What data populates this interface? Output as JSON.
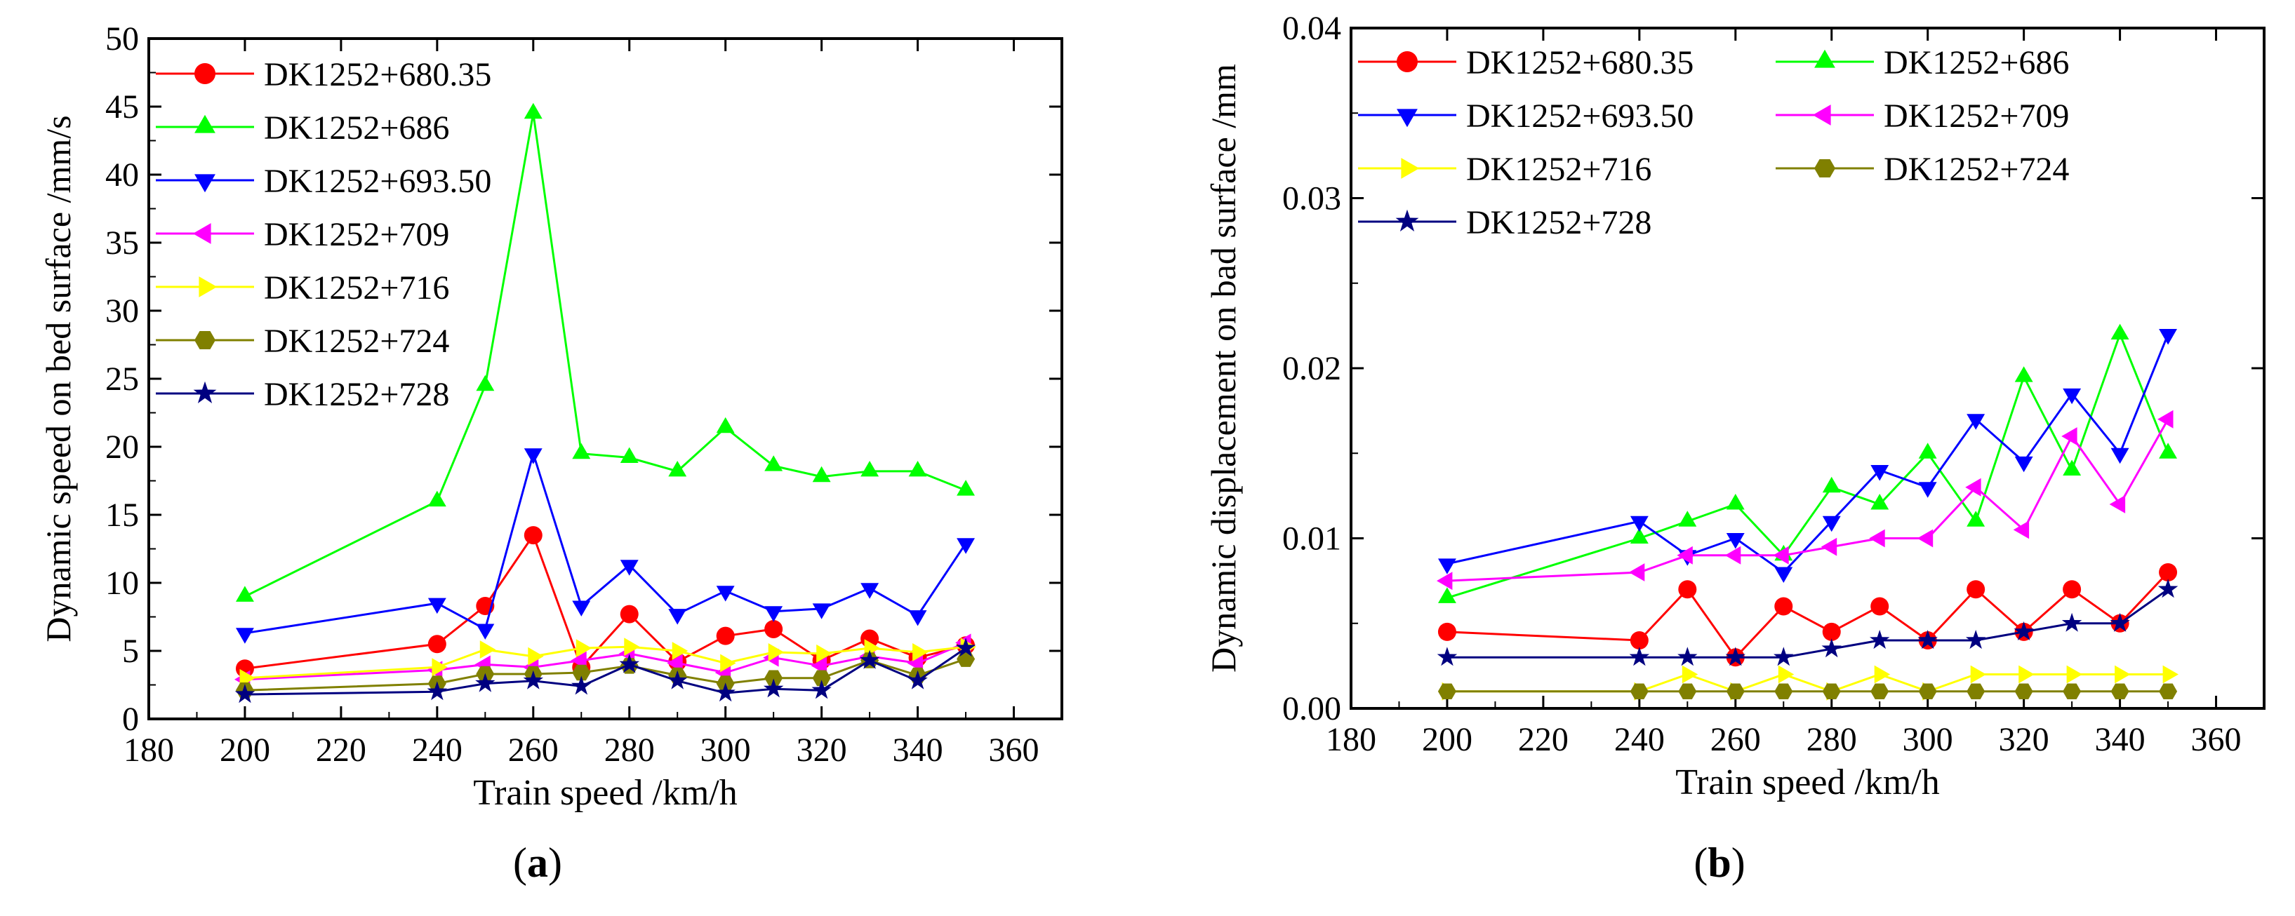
{
  "chart_data": [
    {
      "type": "line",
      "panel_label": "(a)",
      "xlabel": "Train speed /km/h",
      "ylabel": "Dynamic speed on bed surface /mm/s",
      "xlim": [
        180,
        370
      ],
      "ylim": [
        0,
        50
      ],
      "xticks": [
        "180",
        "200",
        "220",
        "240",
        "260",
        "280",
        "300",
        "320",
        "340",
        "360"
      ],
      "yticks": [
        "0",
        "5",
        "10",
        "15",
        "20",
        "25",
        "30",
        "35",
        "40",
        "45",
        "50"
      ],
      "x": [
        200,
        240,
        250,
        260,
        270,
        280,
        290,
        300,
        310,
        320,
        330,
        340,
        350
      ],
      "legend_position": "top-left",
      "series": [
        {
          "name": "DK1252+680.35",
          "color": "#ff0000",
          "marker": "circle",
          "values": [
            3.7,
            5.5,
            8.3,
            13.5,
            3.8,
            7.7,
            4.2,
            6.1,
            6.6,
            4.3,
            5.9,
            4.5,
            5.4
          ]
        },
        {
          "name": "DK1252+686",
          "color": "#00ff00",
          "marker": "triangle-up",
          "values": [
            9.0,
            16.0,
            24.5,
            44.5,
            19.5,
            19.2,
            18.2,
            21.4,
            18.6,
            17.8,
            18.2,
            18.2,
            16.8
          ]
        },
        {
          "name": "DK1252+693.50",
          "color": "#0000ff",
          "marker": "triangle-down",
          "values": [
            6.3,
            8.5,
            6.6,
            19.5,
            8.3,
            11.3,
            7.7,
            9.4,
            7.9,
            8.1,
            9.6,
            7.6,
            12.9
          ]
        },
        {
          "name": "DK1252+709",
          "color": "#ff00ff",
          "marker": "triangle-left",
          "values": [
            2.9,
            3.6,
            4.0,
            3.8,
            4.3,
            4.8,
            4.1,
            3.4,
            4.5,
            3.9,
            4.6,
            4.1,
            5.6
          ]
        },
        {
          "name": "DK1252+716",
          "color": "#ffff00",
          "marker": "triangle-right",
          "values": [
            3.0,
            3.8,
            5.1,
            4.6,
            5.2,
            5.3,
            5.0,
            4.1,
            4.9,
            4.8,
            5.2,
            4.9,
            5.3
          ]
        },
        {
          "name": "DK1252+724",
          "color": "#808000",
          "marker": "hexagon",
          "values": [
            2.1,
            2.6,
            3.3,
            3.3,
            3.4,
            3.9,
            3.2,
            2.6,
            3.0,
            3.0,
            4.3,
            3.2,
            4.4
          ]
        },
        {
          "name": "DK1252+728",
          "color": "#000080",
          "marker": "star",
          "values": [
            1.8,
            2.0,
            2.6,
            2.8,
            2.4,
            4.0,
            2.8,
            1.9,
            2.2,
            2.1,
            4.3,
            2.8,
            5.2
          ]
        }
      ]
    },
    {
      "type": "line",
      "panel_label": "(b)",
      "xlabel": "Train speed /km/h",
      "ylabel": "Dynamic displacement on bad surface /mm",
      "xlim": [
        180,
        370
      ],
      "ylim": [
        0,
        0.04
      ],
      "xticks": [
        "180",
        "200",
        "220",
        "240",
        "260",
        "280",
        "300",
        "320",
        "340",
        "360"
      ],
      "yticks": [
        "0.00",
        "0.01",
        "0.02",
        "0.03",
        "0.04"
      ],
      "x": [
        200,
        240,
        250,
        260,
        270,
        280,
        290,
        300,
        310,
        320,
        330,
        340,
        350
      ],
      "legend_position": "top-left, two columns",
      "series": [
        {
          "name": "DK1252+680.35",
          "color": "#ff0000",
          "marker": "circle",
          "values": [
            0.0045,
            0.004,
            0.007,
            0.003,
            0.006,
            0.0045,
            0.006,
            0.004,
            0.007,
            0.0045,
            0.007,
            0.005,
            0.008
          ]
        },
        {
          "name": "DK1252+686",
          "color": "#00ff00",
          "marker": "triangle-up",
          "values": [
            0.0065,
            0.01,
            0.011,
            0.012,
            0.009,
            0.013,
            0.012,
            0.015,
            0.011,
            0.0195,
            0.014,
            0.022,
            0.015
          ]
        },
        {
          "name": "DK1252+693.50",
          "color": "#0000ff",
          "marker": "triangle-down",
          "values": [
            0.0085,
            0.011,
            0.009,
            0.01,
            0.008,
            0.011,
            0.014,
            0.013,
            0.017,
            0.0145,
            0.0185,
            0.015,
            0.022
          ]
        },
        {
          "name": "DK1252+709",
          "color": "#ff00ff",
          "marker": "triangle-left",
          "values": [
            0.0075,
            0.008,
            0.009,
            0.009,
            0.009,
            0.0095,
            0.01,
            0.01,
            0.013,
            0.0105,
            0.016,
            0.012,
            0.017
          ]
        },
        {
          "name": "DK1252+716",
          "color": "#ffff00",
          "marker": "triangle-right",
          "values": [
            0.001,
            0.001,
            0.002,
            0.001,
            0.002,
            0.001,
            0.002,
            0.001,
            0.002,
            0.002,
            0.002,
            0.002,
            0.002
          ]
        },
        {
          "name": "DK1252+724",
          "color": "#808000",
          "marker": "hexagon",
          "values": [
            0.001,
            0.001,
            0.001,
            0.001,
            0.001,
            0.001,
            0.001,
            0.001,
            0.001,
            0.001,
            0.001,
            0.001,
            0.001
          ]
        },
        {
          "name": "DK1252+728",
          "color": "#000080",
          "marker": "star",
          "values": [
            0.003,
            0.003,
            0.003,
            0.003,
            0.003,
            0.0035,
            0.004,
            0.004,
            0.004,
            0.0045,
            0.005,
            0.005,
            0.007
          ]
        }
      ]
    }
  ]
}
